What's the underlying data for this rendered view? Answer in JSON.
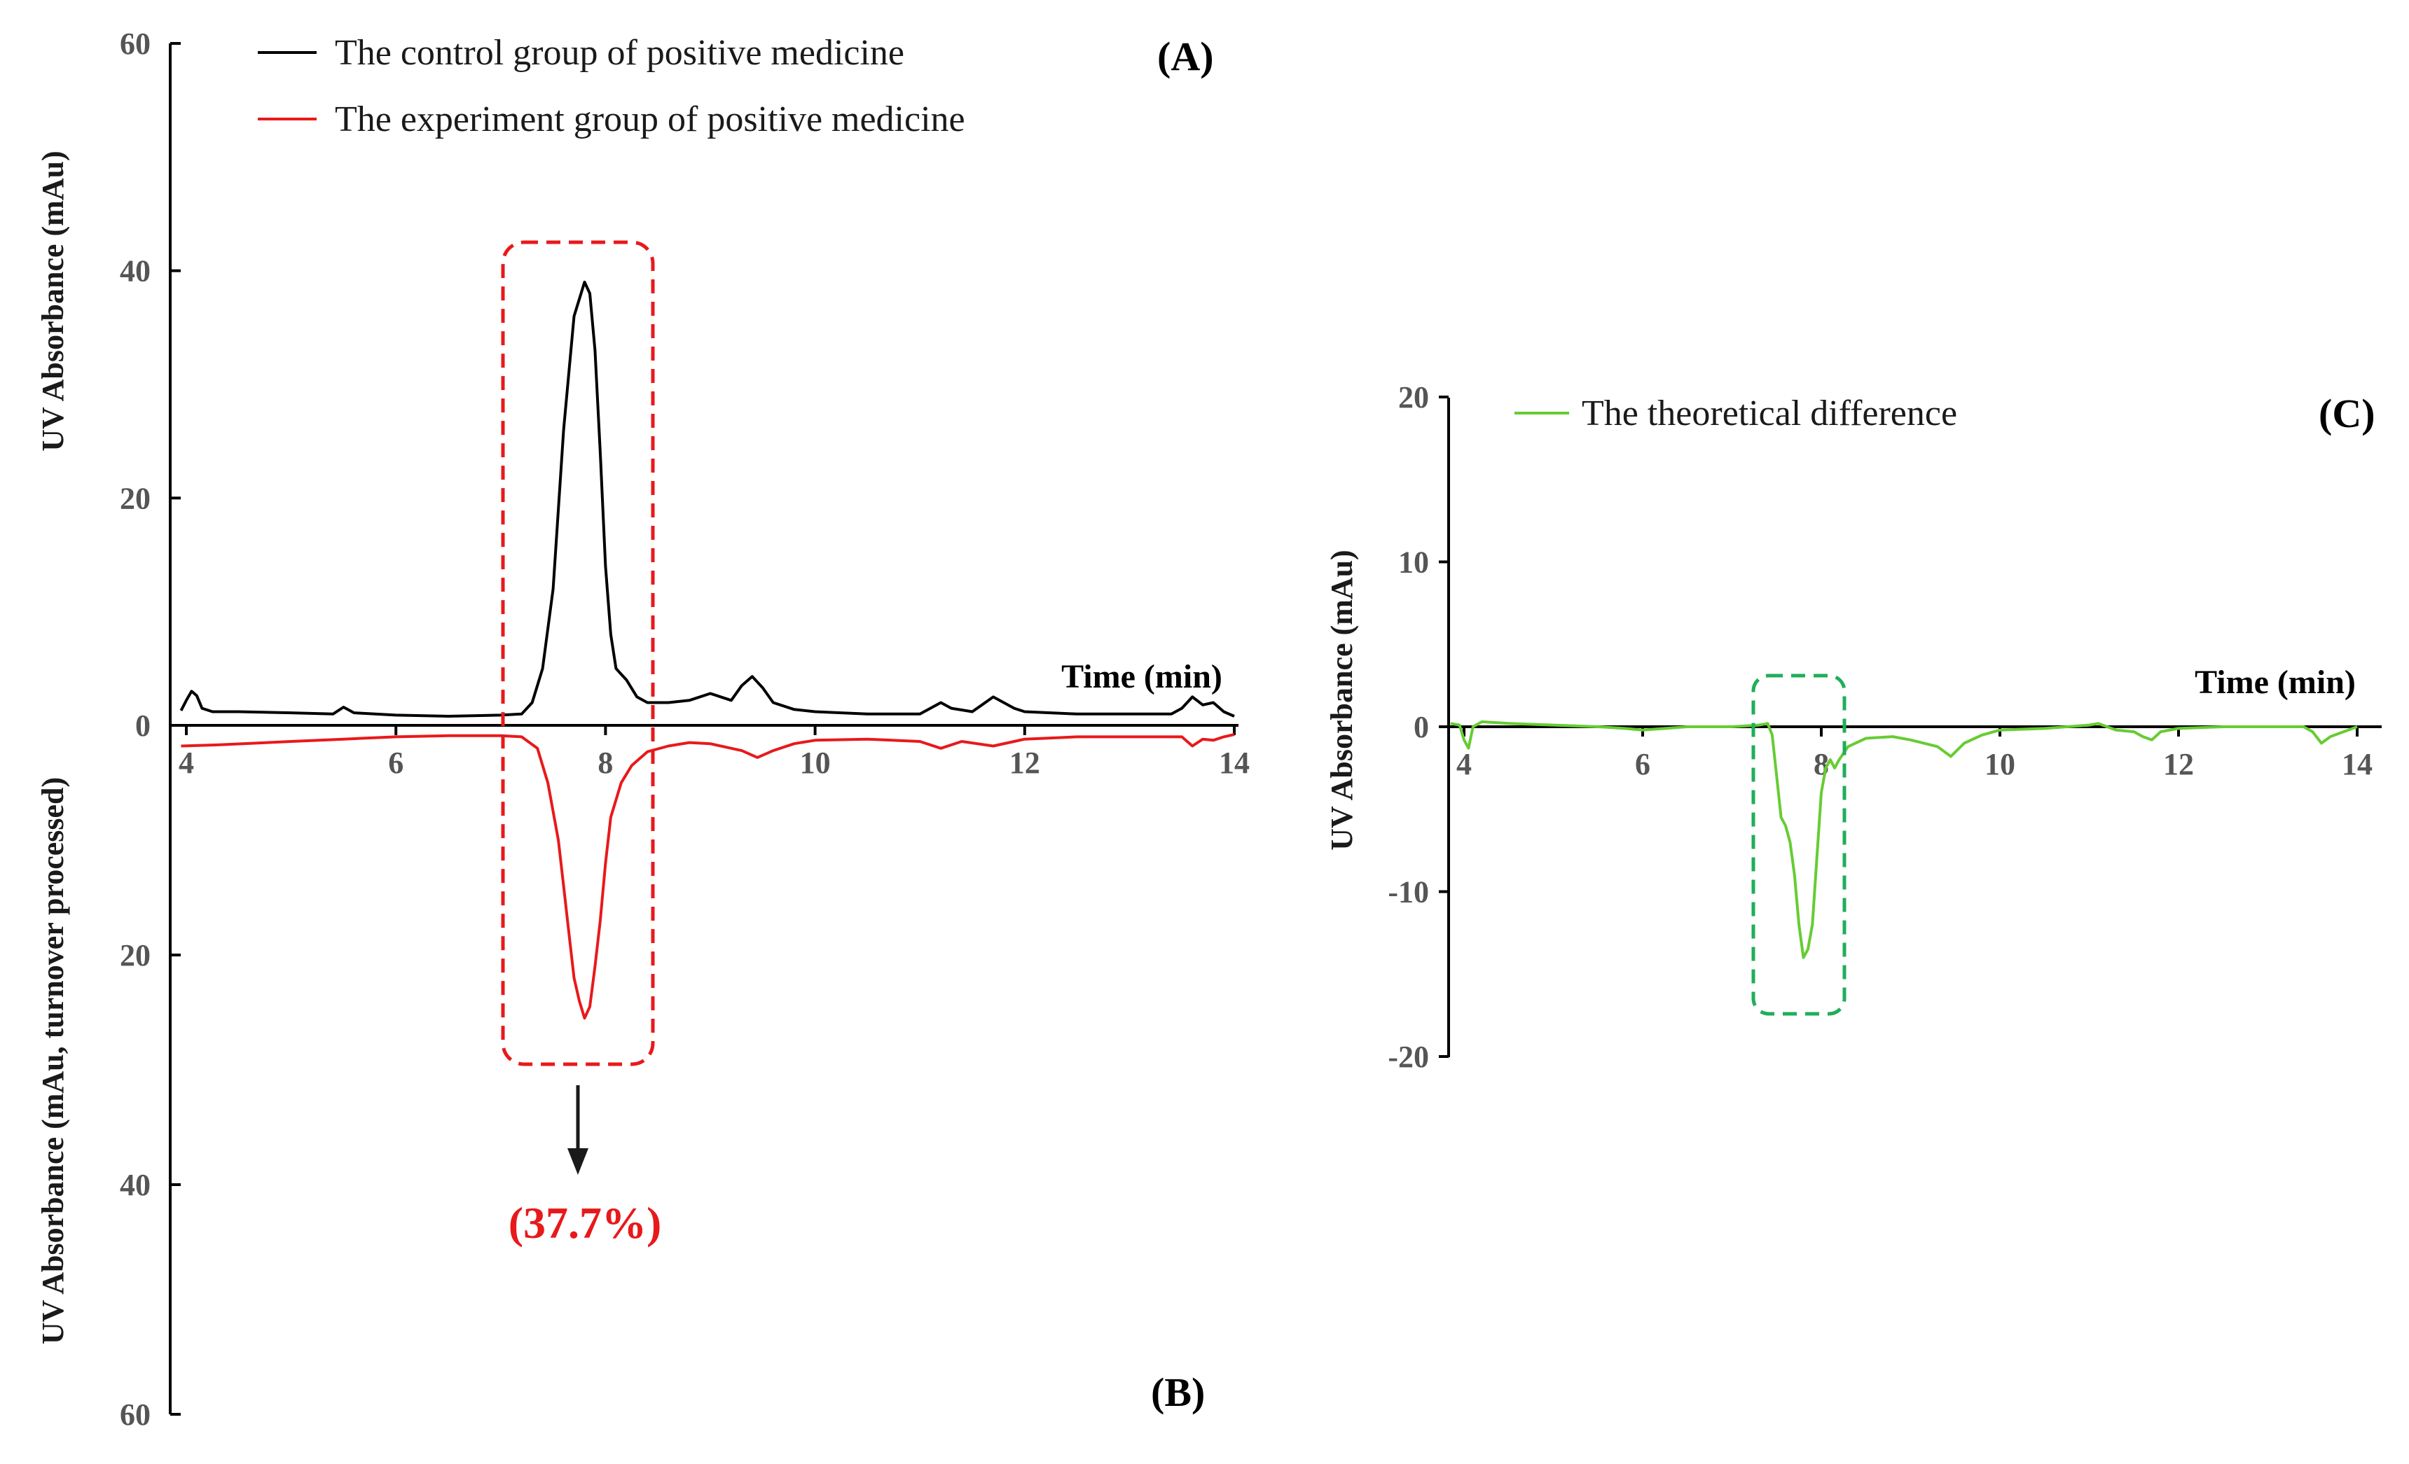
{
  "chart_data": [
    {
      "panel_label": "(A)",
      "type": "line",
      "title": "",
      "xlabel": "Time (min)",
      "ylabel": "UV Absorbance (mAu)",
      "xlim": [
        4,
        14
      ],
      "ylim": [
        0,
        60
      ],
      "x_ticks": [
        "4",
        "6",
        "8",
        "10",
        "12",
        "14"
      ],
      "y_ticks": [
        "0",
        "20",
        "40",
        "60"
      ],
      "color": "#000000",
      "legend": "The control group of positive medicine",
      "series": [
        {
          "name": "The control group of positive medicine",
          "x": [
            3.95,
            4.0,
            4.05,
            4.1,
            4.15,
            4.25,
            4.5,
            5.0,
            5.4,
            5.5,
            5.6,
            6.0,
            6.5,
            7.0,
            7.2,
            7.3,
            7.4,
            7.5,
            7.6,
            7.7,
            7.8,
            7.85,
            7.9,
            7.95,
            8.0,
            8.05,
            8.1,
            8.15,
            8.2,
            8.3,
            8.4,
            8.5,
            8.6,
            8.8,
            9.0,
            9.2,
            9.3,
            9.4,
            9.5,
            9.6,
            9.8,
            10.0,
            10.5,
            11.0,
            11.1,
            11.2,
            11.3,
            11.5,
            11.7,
            11.8,
            11.9,
            12.0,
            12.5,
            13.0,
            13.4,
            13.5,
            13.6,
            13.7,
            13.8,
            13.9,
            14.0
          ],
          "y": [
            1.3,
            2.2,
            3.0,
            2.6,
            1.5,
            1.2,
            1.2,
            1.1,
            1.0,
            1.6,
            1.1,
            0.9,
            0.8,
            0.9,
            1.0,
            2.0,
            5.0,
            12.0,
            26.0,
            36.0,
            39.0,
            38.0,
            33.0,
            24.0,
            14.0,
            8.0,
            5.0,
            4.5,
            4.0,
            2.5,
            2.0,
            2.0,
            2.0,
            2.2,
            2.8,
            2.2,
            3.5,
            4.3,
            3.3,
            2.0,
            1.4,
            1.2,
            1.0,
            1.0,
            1.5,
            2.0,
            1.5,
            1.2,
            2.5,
            2.0,
            1.5,
            1.2,
            1.0,
            1.0,
            1.0,
            1.5,
            2.5,
            1.8,
            2.0,
            1.2,
            0.8
          ]
        }
      ]
    },
    {
      "panel_label": "(B)",
      "type": "line",
      "title": "",
      "xlabel": "",
      "ylabel": "UV Absorbance (mAu, turnover processed)",
      "xlim": [
        4,
        14
      ],
      "ylim": [
        0,
        60
      ],
      "inverted": true,
      "y_ticks": [
        "20",
        "40",
        "60"
      ],
      "color": "#e8191b",
      "legend": "The experiment group of positive medicine",
      "annotation": "(37.7%)",
      "series": [
        {
          "name": "The experiment group of positive medicine",
          "x": [
            3.95,
            4.3,
            5.0,
            5.5,
            6.0,
            6.5,
            7.0,
            7.2,
            7.35,
            7.45,
            7.55,
            7.6,
            7.65,
            7.7,
            7.75,
            7.8,
            7.85,
            7.9,
            7.95,
            8.0,
            8.05,
            8.15,
            8.25,
            8.4,
            8.6,
            8.8,
            9.0,
            9.3,
            9.45,
            9.6,
            9.8,
            10.0,
            10.5,
            11.0,
            11.2,
            11.4,
            11.7,
            11.9,
            12.0,
            12.5,
            13.0,
            13.5,
            13.6,
            13.7,
            13.8,
            13.9,
            14.0
          ],
          "y": [
            1.8,
            1.7,
            1.4,
            1.2,
            1.0,
            0.9,
            0.9,
            1.0,
            2.0,
            5.0,
            10.0,
            14.0,
            18.0,
            22.0,
            24.0,
            25.5,
            24.5,
            21.0,
            17.0,
            12.0,
            8.0,
            5.0,
            3.5,
            2.3,
            1.8,
            1.5,
            1.6,
            2.2,
            2.8,
            2.2,
            1.6,
            1.3,
            1.2,
            1.4,
            2.0,
            1.4,
            1.8,
            1.4,
            1.2,
            1.0,
            1.0,
            1.0,
            1.8,
            1.2,
            1.3,
            1.0,
            0.8
          ]
        }
      ]
    },
    {
      "panel_label": "(C)",
      "type": "line",
      "title": "",
      "xlabel": "Time (min)",
      "ylabel": "UV Absorbance (mAu)",
      "xlim": [
        4,
        14
      ],
      "ylim": [
        -20,
        20
      ],
      "x_ticks": [
        "4",
        "6",
        "8",
        "10",
        "12",
        "14"
      ],
      "y_ticks": [
        "-20",
        "-10",
        "0",
        "10",
        "20"
      ],
      "color": "#66cc33",
      "legend": "The theoretical difference",
      "series": [
        {
          "name": "The theoretical difference",
          "x": [
            3.85,
            3.95,
            4.0,
            4.05,
            4.1,
            4.2,
            4.5,
            5.0,
            5.5,
            5.8,
            6.0,
            6.5,
            7.0,
            7.3,
            7.4,
            7.45,
            7.5,
            7.55,
            7.6,
            7.65,
            7.7,
            7.75,
            7.8,
            7.85,
            7.9,
            7.95,
            8.0,
            8.05,
            8.1,
            8.15,
            8.2,
            8.3,
            8.5,
            8.8,
            9.0,
            9.3,
            9.45,
            9.6,
            9.8,
            10.0,
            10.5,
            11.0,
            11.1,
            11.3,
            11.5,
            11.6,
            11.7,
            11.8,
            12.0,
            12.5,
            13.0,
            13.4,
            13.5,
            13.6,
            13.7,
            13.8,
            13.9,
            14.0
          ],
          "y": [
            0.2,
            0.1,
            -0.8,
            -1.3,
            0.0,
            0.3,
            0.2,
            0.1,
            0.0,
            -0.1,
            -0.2,
            0.0,
            0.0,
            0.1,
            0.2,
            -0.5,
            -3.0,
            -5.5,
            -6.0,
            -7.0,
            -9.0,
            -12.0,
            -14.0,
            -13.5,
            -12.0,
            -8.0,
            -4.0,
            -2.5,
            -2.0,
            -2.5,
            -2.0,
            -1.2,
            -0.7,
            -0.6,
            -0.8,
            -1.2,
            -1.8,
            -1.0,
            -0.5,
            -0.2,
            -0.1,
            0.1,
            0.2,
            -0.2,
            -0.3,
            -0.6,
            -0.8,
            -0.3,
            -0.1,
            0.0,
            0.0,
            0.0,
            -0.3,
            -1.0,
            -0.6,
            -0.4,
            -0.2,
            0.0
          ]
        }
      ]
    }
  ]
}
